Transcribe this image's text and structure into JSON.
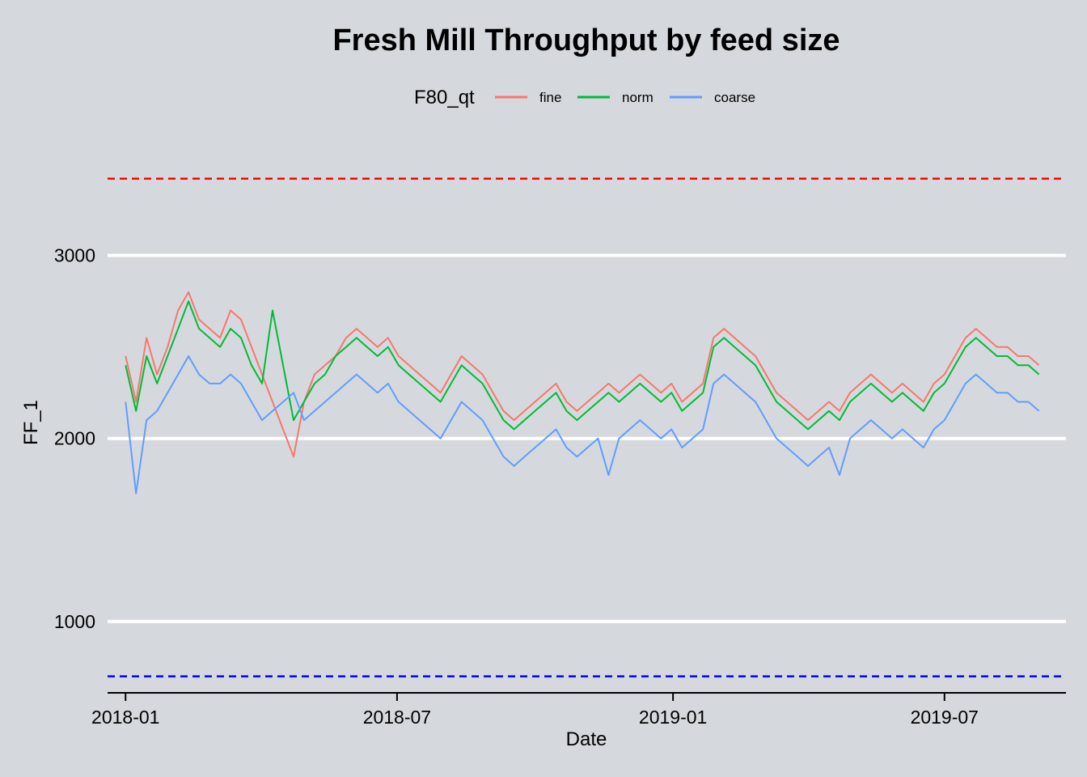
{
  "chart_data": {
    "type": "line",
    "title": "Fresh Mill Throughput by feed size",
    "xlabel": "Date",
    "ylabel": "FF_1",
    "legend": {
      "title": "F80_qt",
      "placement": "top"
    },
    "x_range": [
      "2017-12-20",
      "2019-09-20"
    ],
    "ylim": [
      610,
      3600
    ],
    "x_ticks": [
      {
        "date": "2018-01-01",
        "label": "2018-01"
      },
      {
        "date": "2018-07-01",
        "label": "2018-07"
      },
      {
        "date": "2019-01-01",
        "label": "2019-01"
      },
      {
        "date": "2019-07-01",
        "label": "2019-07"
      }
    ],
    "y_ticks": [
      1000,
      2000,
      3000
    ],
    "grid": "horizontal",
    "reference_lines": [
      {
        "y": 3420,
        "color": "#ff0000",
        "style": "dashed"
      },
      {
        "y": 700,
        "color": "#0000ff",
        "style": "dashed"
      }
    ],
    "series": [
      {
        "name": "fine",
        "color": "#f8766d",
        "points": [
          [
            "2018-01-01",
            2450
          ],
          [
            "2018-01-08",
            2200
          ],
          [
            "2018-01-15",
            2550
          ],
          [
            "2018-01-22",
            2350
          ],
          [
            "2018-01-29",
            2500
          ],
          [
            "2018-02-05",
            2700
          ],
          [
            "2018-02-12",
            2800
          ],
          [
            "2018-02-19",
            2650
          ],
          [
            "2018-02-26",
            2600
          ],
          [
            "2018-03-05",
            2550
          ],
          [
            "2018-03-12",
            2700
          ],
          [
            "2018-03-19",
            2650
          ],
          [
            "2018-03-26",
            2500
          ],
          [
            "2018-04-02",
            2350
          ],
          [
            "2018-04-09",
            2200
          ],
          [
            "2018-04-16",
            2050
          ],
          [
            "2018-04-23",
            1900
          ],
          [
            "2018-04-30",
            2200
          ],
          [
            "2018-05-07",
            2350
          ],
          [
            "2018-05-14",
            2400
          ],
          [
            "2018-05-21",
            2450
          ],
          [
            "2018-05-28",
            2550
          ],
          [
            "2018-06-04",
            2600
          ],
          [
            "2018-06-11",
            2550
          ],
          [
            "2018-06-18",
            2500
          ],
          [
            "2018-06-25",
            2550
          ],
          [
            "2018-07-02",
            2450
          ],
          [
            "2018-07-09",
            2400
          ],
          [
            "2018-07-16",
            2350
          ],
          [
            "2018-07-23",
            2300
          ],
          [
            "2018-07-30",
            2250
          ],
          [
            "2018-08-06",
            2350
          ],
          [
            "2018-08-13",
            2450
          ],
          [
            "2018-08-20",
            2400
          ],
          [
            "2018-08-27",
            2350
          ],
          [
            "2018-09-03",
            2250
          ],
          [
            "2018-09-10",
            2150
          ],
          [
            "2018-09-17",
            2100
          ],
          [
            "2018-09-24",
            2150
          ],
          [
            "2018-10-01",
            2200
          ],
          [
            "2018-10-08",
            2250
          ],
          [
            "2018-10-15",
            2300
          ],
          [
            "2018-10-22",
            2200
          ],
          [
            "2018-10-29",
            2150
          ],
          [
            "2018-11-05",
            2200
          ],
          [
            "2018-11-12",
            2250
          ],
          [
            "2018-11-19",
            2300
          ],
          [
            "2018-11-26",
            2250
          ],
          [
            "2018-12-03",
            2300
          ],
          [
            "2018-12-10",
            2350
          ],
          [
            "2018-12-17",
            2300
          ],
          [
            "2018-12-24",
            2250
          ],
          [
            "2018-12-31",
            2300
          ],
          [
            "2019-01-07",
            2200
          ],
          [
            "2019-01-14",
            2250
          ],
          [
            "2019-01-21",
            2300
          ],
          [
            "2019-01-28",
            2550
          ],
          [
            "2019-02-04",
            2600
          ],
          [
            "2019-02-11",
            2550
          ],
          [
            "2019-02-18",
            2500
          ],
          [
            "2019-02-25",
            2450
          ],
          [
            "2019-03-04",
            2350
          ],
          [
            "2019-03-11",
            2250
          ],
          [
            "2019-03-18",
            2200
          ],
          [
            "2019-03-25",
            2150
          ],
          [
            "2019-04-01",
            2100
          ],
          [
            "2019-04-08",
            2150
          ],
          [
            "2019-04-15",
            2200
          ],
          [
            "2019-04-22",
            2150
          ],
          [
            "2019-04-29",
            2250
          ],
          [
            "2019-05-06",
            2300
          ],
          [
            "2019-05-13",
            2350
          ],
          [
            "2019-05-20",
            2300
          ],
          [
            "2019-05-27",
            2250
          ],
          [
            "2019-06-03",
            2300
          ],
          [
            "2019-06-10",
            2250
          ],
          [
            "2019-06-17",
            2200
          ],
          [
            "2019-06-24",
            2300
          ],
          [
            "2019-07-01",
            2350
          ],
          [
            "2019-07-08",
            2450
          ],
          [
            "2019-07-15",
            2550
          ],
          [
            "2019-07-22",
            2600
          ],
          [
            "2019-07-29",
            2550
          ],
          [
            "2019-08-05",
            2500
          ],
          [
            "2019-08-12",
            2500
          ],
          [
            "2019-08-19",
            2450
          ],
          [
            "2019-08-26",
            2450
          ],
          [
            "2019-09-02",
            2400
          ]
        ]
      },
      {
        "name": "norm",
        "color": "#00ba38",
        "points": [
          [
            "2018-01-01",
            2400
          ],
          [
            "2018-01-08",
            2150
          ],
          [
            "2018-01-15",
            2450
          ],
          [
            "2018-01-22",
            2300
          ],
          [
            "2018-01-29",
            2450
          ],
          [
            "2018-02-05",
            2600
          ],
          [
            "2018-02-12",
            2750
          ],
          [
            "2018-02-19",
            2600
          ],
          [
            "2018-02-26",
            2550
          ],
          [
            "2018-03-05",
            2500
          ],
          [
            "2018-03-12",
            2600
          ],
          [
            "2018-03-19",
            2550
          ],
          [
            "2018-03-26",
            2400
          ],
          [
            "2018-04-02",
            2300
          ],
          [
            "2018-04-09",
            2700
          ],
          [
            "2018-04-16",
            2400
          ],
          [
            "2018-04-23",
            2100
          ],
          [
            "2018-04-30",
            2200
          ],
          [
            "2018-05-07",
            2300
          ],
          [
            "2018-05-14",
            2350
          ],
          [
            "2018-05-21",
            2450
          ],
          [
            "2018-05-28",
            2500
          ],
          [
            "2018-06-04",
            2550
          ],
          [
            "2018-06-11",
            2500
          ],
          [
            "2018-06-18",
            2450
          ],
          [
            "2018-06-25",
            2500
          ],
          [
            "2018-07-02",
            2400
          ],
          [
            "2018-07-09",
            2350
          ],
          [
            "2018-07-16",
            2300
          ],
          [
            "2018-07-23",
            2250
          ],
          [
            "2018-07-30",
            2200
          ],
          [
            "2018-08-06",
            2300
          ],
          [
            "2018-08-13",
            2400
          ],
          [
            "2018-08-20",
            2350
          ],
          [
            "2018-08-27",
            2300
          ],
          [
            "2018-09-03",
            2200
          ],
          [
            "2018-09-10",
            2100
          ],
          [
            "2018-09-17",
            2050
          ],
          [
            "2018-09-24",
            2100
          ],
          [
            "2018-10-01",
            2150
          ],
          [
            "2018-10-08",
            2200
          ],
          [
            "2018-10-15",
            2250
          ],
          [
            "2018-10-22",
            2150
          ],
          [
            "2018-10-29",
            2100
          ],
          [
            "2018-11-05",
            2150
          ],
          [
            "2018-11-12",
            2200
          ],
          [
            "2018-11-19",
            2250
          ],
          [
            "2018-11-26",
            2200
          ],
          [
            "2018-12-03",
            2250
          ],
          [
            "2018-12-10",
            2300
          ],
          [
            "2018-12-17",
            2250
          ],
          [
            "2018-12-24",
            2200
          ],
          [
            "2018-12-31",
            2250
          ],
          [
            "2019-01-07",
            2150
          ],
          [
            "2019-01-14",
            2200
          ],
          [
            "2019-01-21",
            2250
          ],
          [
            "2019-01-28",
            2500
          ],
          [
            "2019-02-04",
            2550
          ],
          [
            "2019-02-11",
            2500
          ],
          [
            "2019-02-18",
            2450
          ],
          [
            "2019-02-25",
            2400
          ],
          [
            "2019-03-04",
            2300
          ],
          [
            "2019-03-11",
            2200
          ],
          [
            "2019-03-18",
            2150
          ],
          [
            "2019-03-25",
            2100
          ],
          [
            "2019-04-01",
            2050
          ],
          [
            "2019-04-08",
            2100
          ],
          [
            "2019-04-15",
            2150
          ],
          [
            "2019-04-22",
            2100
          ],
          [
            "2019-04-29",
            2200
          ],
          [
            "2019-05-06",
            2250
          ],
          [
            "2019-05-13",
            2300
          ],
          [
            "2019-05-20",
            2250
          ],
          [
            "2019-05-27",
            2200
          ],
          [
            "2019-06-03",
            2250
          ],
          [
            "2019-06-10",
            2200
          ],
          [
            "2019-06-17",
            2150
          ],
          [
            "2019-06-24",
            2250
          ],
          [
            "2019-07-01",
            2300
          ],
          [
            "2019-07-08",
            2400
          ],
          [
            "2019-07-15",
            2500
          ],
          [
            "2019-07-22",
            2550
          ],
          [
            "2019-07-29",
            2500
          ],
          [
            "2019-08-05",
            2450
          ],
          [
            "2019-08-12",
            2450
          ],
          [
            "2019-08-19",
            2400
          ],
          [
            "2019-08-26",
            2400
          ],
          [
            "2019-09-02",
            2350
          ]
        ]
      },
      {
        "name": "coarse",
        "color": "#619cff",
        "points": [
          [
            "2018-01-01",
            2200
          ],
          [
            "2018-01-08",
            1700
          ],
          [
            "2018-01-15",
            2100
          ],
          [
            "2018-01-22",
            2150
          ],
          [
            "2018-01-29",
            2250
          ],
          [
            "2018-02-05",
            2350
          ],
          [
            "2018-02-12",
            2450
          ],
          [
            "2018-02-19",
            2350
          ],
          [
            "2018-02-26",
            2300
          ],
          [
            "2018-03-05",
            2300
          ],
          [
            "2018-03-12",
            2350
          ],
          [
            "2018-03-19",
            2300
          ],
          [
            "2018-03-26",
            2200
          ],
          [
            "2018-04-02",
            2100
          ],
          [
            "2018-04-09",
            2150
          ],
          [
            "2018-04-16",
            2200
          ],
          [
            "2018-04-23",
            2250
          ],
          [
            "2018-04-30",
            2100
          ],
          [
            "2018-05-07",
            2150
          ],
          [
            "2018-05-14",
            2200
          ],
          [
            "2018-05-21",
            2250
          ],
          [
            "2018-05-28",
            2300
          ],
          [
            "2018-06-04",
            2350
          ],
          [
            "2018-06-11",
            2300
          ],
          [
            "2018-06-18",
            2250
          ],
          [
            "2018-06-25",
            2300
          ],
          [
            "2018-07-02",
            2200
          ],
          [
            "2018-07-09",
            2150
          ],
          [
            "2018-07-16",
            2100
          ],
          [
            "2018-07-23",
            2050
          ],
          [
            "2018-07-30",
            2000
          ],
          [
            "2018-08-06",
            2100
          ],
          [
            "2018-08-13",
            2200
          ],
          [
            "2018-08-20",
            2150
          ],
          [
            "2018-08-27",
            2100
          ],
          [
            "2018-09-03",
            2000
          ],
          [
            "2018-09-10",
            1900
          ],
          [
            "2018-09-17",
            1850
          ],
          [
            "2018-09-24",
            1900
          ],
          [
            "2018-10-01",
            1950
          ],
          [
            "2018-10-08",
            2000
          ],
          [
            "2018-10-15",
            2050
          ],
          [
            "2018-10-22",
            1950
          ],
          [
            "2018-10-29",
            1900
          ],
          [
            "2018-11-05",
            1950
          ],
          [
            "2018-11-12",
            2000
          ],
          [
            "2018-11-19",
            1800
          ],
          [
            "2018-11-26",
            2000
          ],
          [
            "2018-12-03",
            2050
          ],
          [
            "2018-12-10",
            2100
          ],
          [
            "2018-12-17",
            2050
          ],
          [
            "2018-12-24",
            2000
          ],
          [
            "2018-12-31",
            2050
          ],
          [
            "2019-01-07",
            1950
          ],
          [
            "2019-01-14",
            2000
          ],
          [
            "2019-01-21",
            2050
          ],
          [
            "2019-01-28",
            2300
          ],
          [
            "2019-02-04",
            2350
          ],
          [
            "2019-02-11",
            2300
          ],
          [
            "2019-02-18",
            2250
          ],
          [
            "2019-02-25",
            2200
          ],
          [
            "2019-03-04",
            2100
          ],
          [
            "2019-03-11",
            2000
          ],
          [
            "2019-03-18",
            1950
          ],
          [
            "2019-03-25",
            1900
          ],
          [
            "2019-04-01",
            1850
          ],
          [
            "2019-04-08",
            1900
          ],
          [
            "2019-04-15",
            1950
          ],
          [
            "2019-04-22",
            1800
          ],
          [
            "2019-04-29",
            2000
          ],
          [
            "2019-05-06",
            2050
          ],
          [
            "2019-05-13",
            2100
          ],
          [
            "2019-05-20",
            2050
          ],
          [
            "2019-05-27",
            2000
          ],
          [
            "2019-06-03",
            2050
          ],
          [
            "2019-06-10",
            2000
          ],
          [
            "2019-06-17",
            1950
          ],
          [
            "2019-06-24",
            2050
          ],
          [
            "2019-07-01",
            2100
          ],
          [
            "2019-07-08",
            2200
          ],
          [
            "2019-07-15",
            2300
          ],
          [
            "2019-07-22",
            2350
          ],
          [
            "2019-07-29",
            2300
          ],
          [
            "2019-08-05",
            2250
          ],
          [
            "2019-08-12",
            2250
          ],
          [
            "2019-08-19",
            2200
          ],
          [
            "2019-08-26",
            2200
          ],
          [
            "2019-09-02",
            2150
          ]
        ]
      }
    ]
  }
}
